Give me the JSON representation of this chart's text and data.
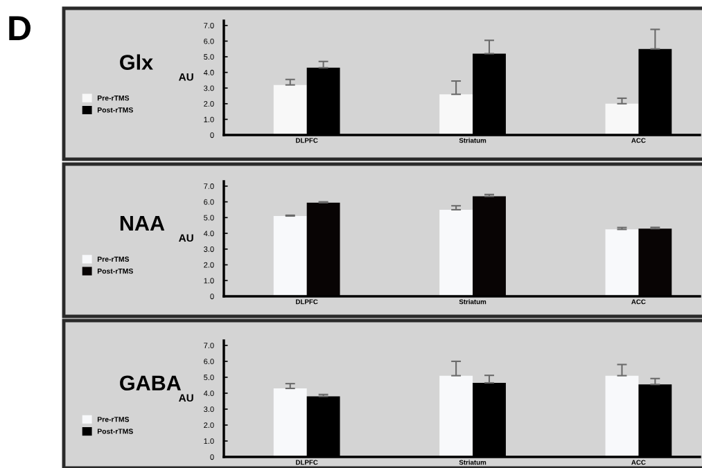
{
  "chart_data": [
    {
      "type": "bar",
      "title": "Glx",
      "ylabel": "AU",
      "annotations": [
        "D"
      ],
      "categories": [
        "DLPFC",
        "Striatum",
        "ACC"
      ],
      "legend": "left",
      "grid": false,
      "ylim": [
        0,
        7.3
      ],
      "yticks": [
        0,
        {
          "value": 1,
          "label": "1.0"
        },
        {
          "value": 2,
          "label": "2.0"
        },
        {
          "value": 3,
          "label": "3.0"
        },
        {
          "value": 4,
          "label": "4.0"
        },
        {
          "value": 5,
          "label": "5.0"
        },
        {
          "value": 6,
          "label": "6.0"
        },
        {
          "value": 7,
          "label": "7.0"
        }
      ],
      "series": [
        {
          "name": "Pre-rTMS",
          "color": "#f8f8f8",
          "values": [
            3.2,
            2.6,
            2.0
          ],
          "errors": [
            [
              3.2,
              3.55
            ],
            [
              2.6,
              3.45
            ],
            [
              2.0,
              2.35
            ]
          ]
        },
        {
          "name": "Post-rTMS",
          "color": "#000000",
          "values": [
            4.3,
            5.2,
            5.5
          ],
          "errors": [
            [
              4.3,
              4.7
            ],
            [
              5.2,
              6.05
            ],
            [
              5.5,
              6.75
            ]
          ]
        }
      ]
    },
    {
      "type": "bar",
      "title": "NAA",
      "ylabel": "AU",
      "categories": [
        "DLPFC",
        "Striatum",
        "ACC"
      ],
      "legend": "left",
      "grid": false,
      "ylim": [
        0,
        7.3
      ],
      "yticks": [
        0,
        {
          "value": 1,
          "label": "1.0"
        },
        {
          "value": 2,
          "label": "2.0"
        },
        {
          "value": 3,
          "label": "3.0"
        },
        {
          "value": 4,
          "label": "4.0"
        },
        {
          "value": 5,
          "label": "5.0"
        },
        {
          "value": 6,
          "label": "6.0"
        },
        {
          "value": 7,
          "label": "7.0"
        }
      ],
      "series": [
        {
          "name": "Pre-rTMS",
          "color": "#f8f9fb",
          "values": [
            5.1,
            5.5,
            4.25
          ],
          "errors": [
            [
              5.1,
              5.15
            ],
            [
              5.5,
              5.75
            ],
            [
              4.25,
              4.37
            ]
          ]
        },
        {
          "name": "Post-rTMS",
          "color": "#080404",
          "values": [
            5.95,
            6.35,
            4.3
          ],
          "errors": [
            [
              5.95,
              6.0
            ],
            [
              6.35,
              6.47
            ],
            [
              4.3,
              4.38
            ]
          ]
        }
      ]
    },
    {
      "type": "bar",
      "title": "GABA",
      "ylabel": "AU",
      "categories": [
        "DLPFC",
        "Striatum",
        "ACC"
      ],
      "legend": "left",
      "grid": false,
      "ylim": [
        0,
        7.3
      ],
      "yticks": [
        0,
        {
          "value": 1,
          "label": "1.0"
        },
        {
          "value": 2,
          "label": "2.0"
        },
        {
          "value": 3,
          "label": "3.0"
        },
        {
          "value": 4,
          "label": "4.0"
        },
        {
          "value": 5,
          "label": "5.0"
        },
        {
          "value": 6,
          "label": "6.0"
        },
        {
          "value": 7,
          "label": "7.0"
        }
      ],
      "series": [
        {
          "name": "Pre-rTMS",
          "color": "#f8f9fb",
          "values": [
            4.3,
            5.1,
            5.1
          ],
          "errors": [
            [
              4.3,
              4.6
            ],
            [
              5.1,
              6.0
            ],
            [
              5.1,
              5.8
            ]
          ]
        },
        {
          "name": "Post-rTMS",
          "color": "#000000",
          "values": [
            3.8,
            4.65,
            4.55
          ],
          "errors": [
            [
              3.8,
              3.92
            ],
            [
              4.65,
              5.12
            ],
            [
              4.55,
              4.92
            ]
          ]
        }
      ]
    }
  ]
}
